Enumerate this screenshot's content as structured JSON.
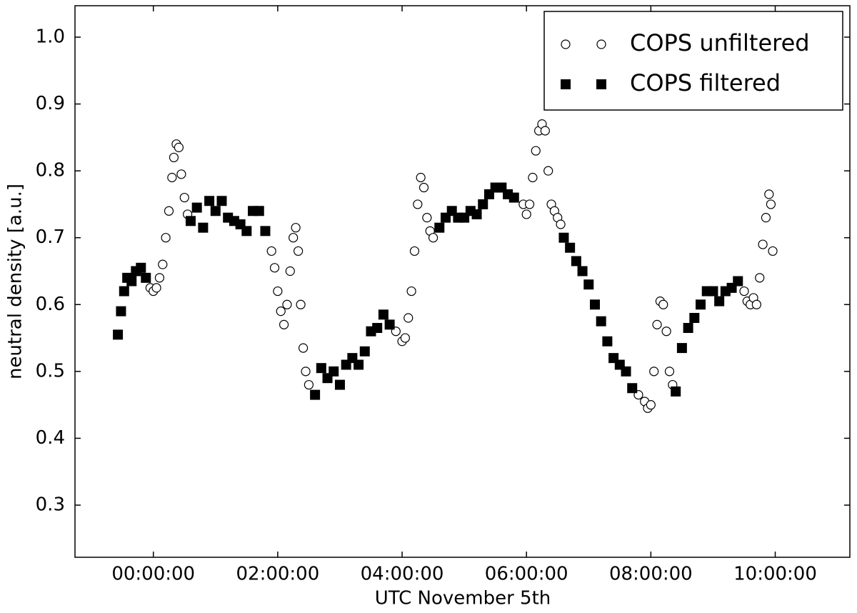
{
  "chart_data": {
    "type": "scatter",
    "xlabel": "UTC November 5th",
    "ylabel": "neutral density [a.u.]",
    "xlim": [
      -1.26,
      11.2
    ],
    "ylim": [
      0.222,
      1.047
    ],
    "xticks": [
      {
        "value": 0,
        "label": "00:00:00"
      },
      {
        "value": 2,
        "label": "02:00:00"
      },
      {
        "value": 4,
        "label": "04:00:00"
      },
      {
        "value": 6,
        "label": "06:00:00"
      },
      {
        "value": 8,
        "label": "08:00:00"
      },
      {
        "value": 10,
        "label": "10:00:00"
      }
    ],
    "yticks": [
      0.3,
      0.4,
      0.5,
      0.6,
      0.7,
      0.8,
      0.9,
      {
        "value": 1.0,
        "label": "1.0"
      }
    ],
    "grid": false,
    "legend": "upper right",
    "series": [
      {
        "name": "COPS unfiltered",
        "marker": "circle",
        "color": "#000000",
        "x": [
          -0.05,
          0.0,
          0.05,
          0.1,
          0.15,
          0.2,
          0.25,
          0.3,
          0.33,
          0.37,
          0.41,
          0.45,
          0.5,
          0.55,
          1.9,
          1.95,
          2.0,
          2.05,
          2.1,
          2.15,
          2.2,
          2.25,
          2.29,
          2.33,
          2.37,
          2.41,
          2.45,
          2.5,
          3.9,
          4.0,
          4.05,
          4.1,
          4.15,
          4.2,
          4.25,
          4.3,
          4.35,
          4.4,
          4.45,
          4.5,
          5.95,
          6.0,
          6.05,
          6.1,
          6.15,
          6.2,
          6.25,
          6.3,
          6.35,
          6.4,
          6.45,
          6.5,
          6.55,
          7.8,
          7.9,
          7.95,
          8.0,
          8.05,
          8.1,
          8.15,
          8.2,
          8.25,
          8.3,
          8.35,
          9.5,
          9.55,
          9.6,
          9.65,
          9.7,
          9.75,
          9.8,
          9.85,
          9.9,
          9.93,
          9.96
        ],
        "values": [
          0.625,
          0.62,
          0.625,
          0.64,
          0.66,
          0.7,
          0.74,
          0.79,
          0.82,
          0.84,
          0.835,
          0.795,
          0.76,
          0.735,
          0.68,
          0.655,
          0.62,
          0.59,
          0.57,
          0.6,
          0.65,
          0.7,
          0.715,
          0.68,
          0.6,
          0.535,
          0.5,
          0.48,
          0.56,
          0.545,
          0.55,
          0.58,
          0.62,
          0.68,
          0.75,
          0.79,
          0.775,
          0.73,
          0.71,
          0.7,
          0.75,
          0.735,
          0.75,
          0.79,
          0.83,
          0.86,
          0.87,
          0.86,
          0.8,
          0.75,
          0.74,
          0.73,
          0.72,
          0.465,
          0.455,
          0.445,
          0.45,
          0.5,
          0.57,
          0.605,
          0.6,
          0.56,
          0.5,
          0.48,
          0.62,
          0.605,
          0.6,
          0.61,
          0.6,
          0.64,
          0.69,
          0.73,
          0.765,
          0.75,
          0.68
        ]
      },
      {
        "name": "COPS filtered",
        "marker": "square",
        "color": "#000000",
        "x": [
          -0.57,
          -0.52,
          -0.47,
          -0.42,
          -0.35,
          -0.28,
          -0.2,
          -0.12,
          0.6,
          0.7,
          0.8,
          0.9,
          1.0,
          1.1,
          1.2,
          1.3,
          1.4,
          1.5,
          1.6,
          1.7,
          1.8,
          2.6,
          2.7,
          2.8,
          2.9,
          3.0,
          3.1,
          3.2,
          3.3,
          3.4,
          3.5,
          3.6,
          3.7,
          3.8,
          4.6,
          4.7,
          4.8,
          4.9,
          5.0,
          5.1,
          5.2,
          5.3,
          5.4,
          5.5,
          5.6,
          5.7,
          5.8,
          6.6,
          6.7,
          6.8,
          6.9,
          7.0,
          7.1,
          7.2,
          7.3,
          7.4,
          7.5,
          7.6,
          7.7,
          8.4,
          8.5,
          8.6,
          8.7,
          8.8,
          8.9,
          9.0,
          9.1,
          9.2,
          9.3,
          9.4
        ],
        "values": [
          0.555,
          0.59,
          0.62,
          0.64,
          0.635,
          0.65,
          0.655,
          0.64,
          0.725,
          0.745,
          0.715,
          0.755,
          0.74,
          0.755,
          0.73,
          0.725,
          0.72,
          0.71,
          0.74,
          0.74,
          0.71,
          0.465,
          0.505,
          0.49,
          0.5,
          0.48,
          0.51,
          0.52,
          0.51,
          0.53,
          0.56,
          0.565,
          0.585,
          0.57,
          0.715,
          0.73,
          0.74,
          0.73,
          0.73,
          0.74,
          0.735,
          0.75,
          0.765,
          0.775,
          0.775,
          0.765,
          0.76,
          0.7,
          0.685,
          0.665,
          0.65,
          0.63,
          0.6,
          0.575,
          0.545,
          0.52,
          0.51,
          0.5,
          0.475,
          0.47,
          0.535,
          0.565,
          0.58,
          0.6,
          0.62,
          0.62,
          0.605,
          0.62,
          0.625,
          0.635
        ]
      }
    ]
  }
}
